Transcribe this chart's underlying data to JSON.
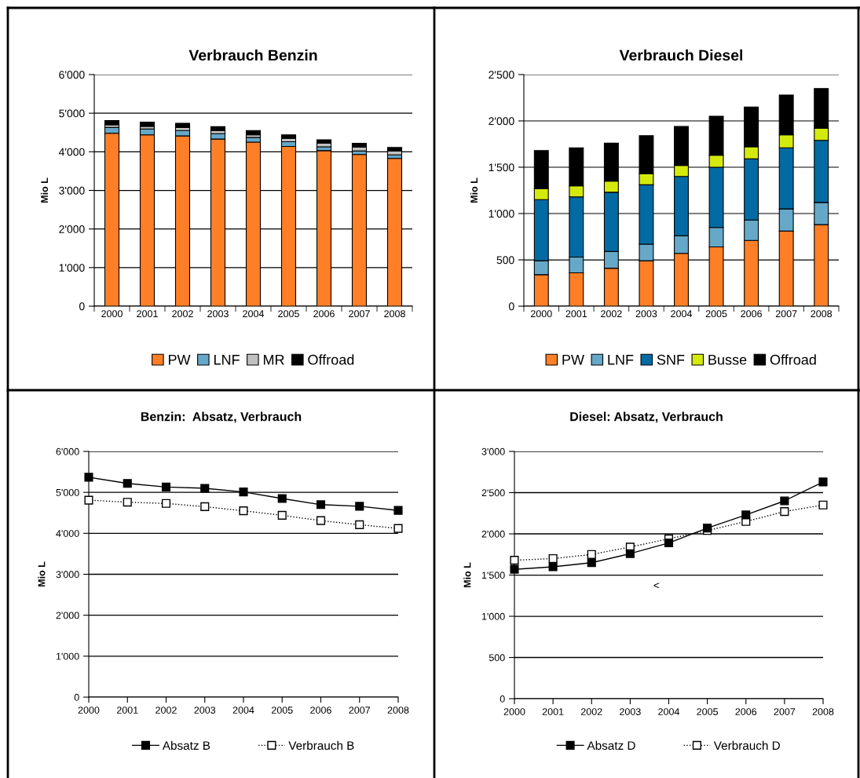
{
  "chart_data": [
    {
      "type": "bar",
      "title": "Verbrauch Benzin",
      "ylabel": "Mio L",
      "stacked": true,
      "grid": "y",
      "legend": "bottom",
      "categories": [
        "2000",
        "2001",
        "2002",
        "2003",
        "2004",
        "2005",
        "2006",
        "2007",
        "2008"
      ],
      "ylim": [
        0,
        6000
      ],
      "yticks": [
        0,
        {
          "value": 1000,
          "label": "1'000"
        },
        {
          "value": 2000,
          "label": "2'000"
        },
        {
          "value": 3000,
          "label": "3'000"
        },
        {
          "value": 4000,
          "label": "4'000"
        },
        {
          "value": 5000,
          "label": "5'000"
        },
        {
          "value": 6000,
          "label": "6'000"
        }
      ],
      "series": [
        {
          "name": "PW",
          "color": "#ff7f27",
          "values": [
            4480,
            4440,
            4410,
            4330,
            4250,
            4140,
            4030,
            3930,
            3830
          ]
        },
        {
          "name": "LNF",
          "color": "#66a8c8",
          "values": [
            150,
            150,
            140,
            140,
            120,
            120,
            100,
            90,
            90
          ]
        },
        {
          "name": "MR",
          "color": "#c0c0c0",
          "values": [
            70,
            70,
            80,
            80,
            70,
            90,
            90,
            100,
            100
          ]
        },
        {
          "name": "Offroad",
          "color": "#000000",
          "values": [
            110,
            110,
            110,
            100,
            110,
            90,
            90,
            100,
            90
          ]
        }
      ]
    },
    {
      "type": "bar",
      "title": "Verbrauch Diesel",
      "ylabel": "Mio L",
      "stacked": true,
      "grid": "y",
      "legend": "bottom",
      "categories": [
        "2000",
        "2001",
        "2002",
        "2003",
        "2004",
        "2005",
        "2006",
        "2007",
        "2008"
      ],
      "ylim": [
        0,
        2500
      ],
      "yticks": [
        0,
        500,
        {
          "value": 1000,
          "label": "1'000"
        },
        {
          "value": 1500,
          "label": "1'500"
        },
        {
          "value": 2000,
          "label": "2'000"
        },
        {
          "value": 2500,
          "label": "2'500"
        }
      ],
      "series": [
        {
          "name": "PW",
          "color": "#ff7f27",
          "values": [
            340,
            360,
            410,
            490,
            570,
            640,
            710,
            810,
            880
          ]
        },
        {
          "name": "LNF",
          "color": "#66a8c8",
          "values": [
            150,
            170,
            180,
            180,
            190,
            210,
            220,
            240,
            240
          ]
        },
        {
          "name": "SNF",
          "color": "#036ba3",
          "values": [
            660,
            650,
            640,
            640,
            640,
            650,
            660,
            660,
            670
          ]
        },
        {
          "name": "Busse",
          "color": "#d4ea0c",
          "values": [
            120,
            120,
            120,
            120,
            120,
            130,
            130,
            140,
            130
          ]
        },
        {
          "name": "Offroad",
          "color": "#000000",
          "values": [
            410,
            410,
            410,
            410,
            420,
            420,
            430,
            430,
            430
          ]
        }
      ]
    },
    {
      "type": "line",
      "title": "Benzin:  Absatz, Verbrauch",
      "ylabel": "Mio L",
      "grid": "y",
      "legend": "bottom",
      "marker": "square",
      "x": [
        2000,
        2001,
        2002,
        2003,
        2004,
        2005,
        2006,
        2007,
        2008
      ],
      "xlim": [
        2000,
        2008
      ],
      "xticks": [
        2000,
        2001,
        2002,
        2003,
        2004,
        2005,
        2006,
        2007,
        2008
      ],
      "ylim": [
        0,
        6000
      ],
      "yticks": [
        0,
        {
          "value": 1000,
          "label": "1'000"
        },
        {
          "value": 2000,
          "label": "2'000"
        },
        {
          "value": 3000,
          "label": "3'000"
        },
        {
          "value": 4000,
          "label": "4'000"
        },
        {
          "value": 5000,
          "label": "5'000"
        },
        {
          "value": 6000,
          "label": "6'000"
        }
      ],
      "series": [
        {
          "name": "Absatz B",
          "color": "#000000",
          "line_style": "solid",
          "values": [
            5370,
            5220,
            5130,
            5100,
            5010,
            4850,
            4700,
            4660,
            4560
          ]
        },
        {
          "name": "Verbrauch B",
          "color": "#000000",
          "line_style": "dotted",
          "values": [
            4810,
            4760,
            4730,
            4650,
            4550,
            4440,
            4310,
            4210,
            4120
          ]
        }
      ]
    },
    {
      "type": "line",
      "title": "Diesel: Absatz, Verbrauch",
      "ylabel": "Mio L",
      "grid": "y",
      "legend": "bottom",
      "marker": "square",
      "annotations": [
        "<"
      ],
      "x": [
        2000,
        2001,
        2002,
        2003,
        2004,
        2005,
        2006,
        2007,
        2008
      ],
      "xlim": [
        2000,
        2008
      ],
      "xticks": [
        2000,
        2001,
        2002,
        2003,
        2004,
        2005,
        2006,
        2007,
        2008
      ],
      "ylim": [
        0,
        3000
      ],
      "yticks": [
        0,
        500,
        {
          "value": 1000,
          "label": "1'000"
        },
        {
          "value": 1500,
          "label": "1'500"
        },
        {
          "value": 2000,
          "label": "2'000"
        },
        {
          "value": 2500,
          "label": "2'500"
        },
        {
          "value": 3000,
          "label": "3'000"
        }
      ],
      "series": [
        {
          "name": "Absatz D",
          "color": "#000000",
          "line_style": "solid",
          "values": [
            1570,
            1600,
            1650,
            1760,
            1890,
            2070,
            2230,
            2400,
            2630
          ]
        },
        {
          "name": "Verbrauch D",
          "color": "#000000",
          "line_style": "dotted",
          "values": [
            1680,
            1700,
            1750,
            1840,
            1940,
            2040,
            2150,
            2270,
            2350
          ]
        }
      ]
    }
  ]
}
